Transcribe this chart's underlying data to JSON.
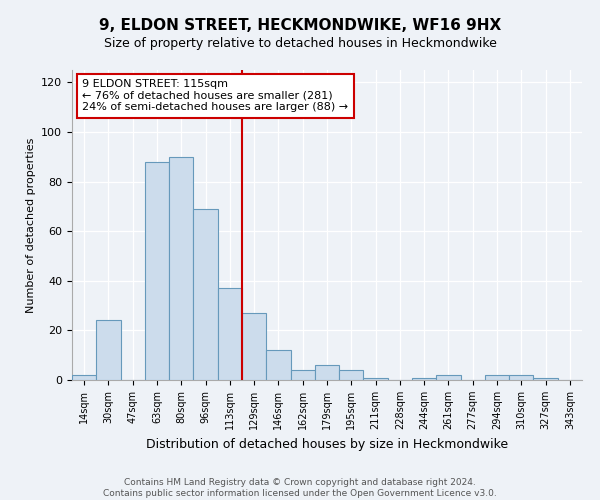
{
  "title": "9, ELDON STREET, HECKMONDWIKE, WF16 9HX",
  "subtitle": "Size of property relative to detached houses in Heckmondwike",
  "xlabel": "Distribution of detached houses by size in Heckmondwike",
  "ylabel": "Number of detached properties",
  "bin_labels": [
    "14sqm",
    "30sqm",
    "47sqm",
    "63sqm",
    "80sqm",
    "96sqm",
    "113sqm",
    "129sqm",
    "146sqm",
    "162sqm",
    "179sqm",
    "195sqm",
    "211sqm",
    "228sqm",
    "244sqm",
    "261sqm",
    "277sqm",
    "294sqm",
    "310sqm",
    "327sqm",
    "343sqm"
  ],
  "bar_values": [
    2,
    24,
    0,
    88,
    90,
    69,
    37,
    27,
    12,
    4,
    6,
    4,
    1,
    0,
    1,
    2,
    0,
    2,
    2,
    1,
    0
  ],
  "bar_color": "#ccdcec",
  "bar_edge_color": "#6699bb",
  "vline_color": "#cc0000",
  "annotation_title": "9 ELDON STREET: 115sqm",
  "annotation_line1": "← 76% of detached houses are smaller (281)",
  "annotation_line2": "24% of semi-detached houses are larger (88) →",
  "annotation_box_color": "#ffffff",
  "annotation_box_edge": "#cc0000",
  "ylim": [
    0,
    125
  ],
  "yticks": [
    0,
    20,
    40,
    60,
    80,
    100,
    120
  ],
  "footer1": "Contains HM Land Registry data © Crown copyright and database right 2024.",
  "footer2": "Contains public sector information licensed under the Open Government Licence v3.0.",
  "background_color": "#eef2f7"
}
